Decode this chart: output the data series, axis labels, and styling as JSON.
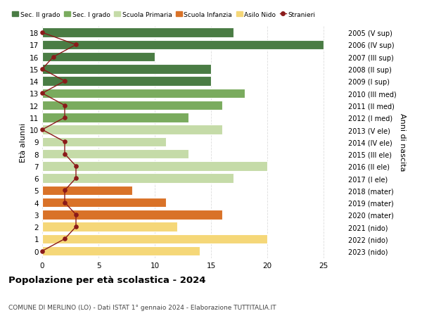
{
  "ages": [
    18,
    17,
    16,
    15,
    14,
    13,
    12,
    11,
    10,
    9,
    8,
    7,
    6,
    5,
    4,
    3,
    2,
    1,
    0
  ],
  "right_labels": [
    "2005 (V sup)",
    "2006 (IV sup)",
    "2007 (III sup)",
    "2008 (II sup)",
    "2009 (I sup)",
    "2010 (III med)",
    "2011 (II med)",
    "2012 (I med)",
    "2013 (V ele)",
    "2014 (IV ele)",
    "2015 (III ele)",
    "2016 (II ele)",
    "2017 (I ele)",
    "2018 (mater)",
    "2019 (mater)",
    "2020 (mater)",
    "2021 (nido)",
    "2022 (nido)",
    "2023 (nido)"
  ],
  "bar_values": [
    17,
    25,
    10,
    15,
    15,
    18,
    16,
    13,
    16,
    11,
    13,
    20,
    17,
    8,
    11,
    16,
    12,
    20,
    14
  ],
  "bar_colors": [
    "#4a7c44",
    "#4a7c44",
    "#4a7c44",
    "#4a7c44",
    "#4a7c44",
    "#7aab5e",
    "#7aab5e",
    "#7aab5e",
    "#c5dba8",
    "#c5dba8",
    "#c5dba8",
    "#c5dba8",
    "#c5dba8",
    "#d97228",
    "#d97228",
    "#d97228",
    "#f5d778",
    "#f5d778",
    "#f5d778"
  ],
  "stranieri_values": [
    0,
    3,
    1,
    0,
    2,
    0,
    2,
    2,
    0,
    2,
    2,
    3,
    3,
    2,
    2,
    3,
    3,
    2,
    0
  ],
  "legend_labels": [
    "Sec. II grado",
    "Sec. I grado",
    "Scuola Primaria",
    "Scuola Infanzia",
    "Asilo Nido",
    "Stranieri"
  ],
  "legend_colors": [
    "#4a7c44",
    "#7aab5e",
    "#c5dba8",
    "#d97228",
    "#f5d778",
    "#8b1a1a"
  ],
  "ylabel_left": "Età alunni",
  "ylabel_right": "Anni di nascita",
  "title": "Popolazione per età scolastica - 2024",
  "subtitle": "COMUNE DI MERLINO (LO) - Dati ISTAT 1° gennaio 2024 - Elaborazione TUTTITALIA.IT",
  "xlim": [
    0,
    27
  ],
  "background_color": "#ffffff",
  "bar_height": 0.78,
  "grid_color": "#dddddd"
}
